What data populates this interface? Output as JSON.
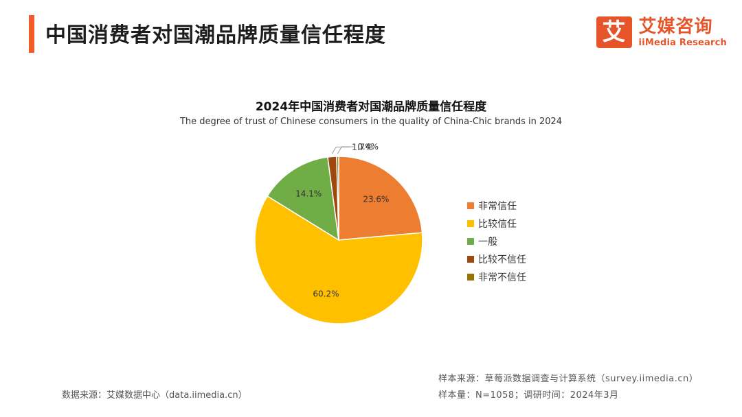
{
  "header": {
    "title": "中国消费者对国潮品牌质量信任程度",
    "accent_color": "#F05A28"
  },
  "logo": {
    "mark": "艾",
    "name_cn": "艾媒咨询",
    "name_en": "iiMedia Research",
    "color": "#E6542A"
  },
  "chart_data": {
    "type": "pie",
    "title": "2024年中国消费者对国潮品牌质量信任程度",
    "subtitle": "The degree of trust of Chinese consumers in the quality of China-Chic brands in 2024",
    "unit": "%",
    "start_angle_deg": 0,
    "direction": "clockwise",
    "legend_position": "right",
    "slices": [
      {
        "label": "非常信任",
        "value": 23.6,
        "display": "23.6%",
        "color": "#ED7D31"
      },
      {
        "label": "比较信任",
        "value": 60.2,
        "display": "60.2%",
        "color": "#FFC000"
      },
      {
        "label": "一般",
        "value": 14.1,
        "display": "14.1%",
        "color": "#70AD47"
      },
      {
        "label": "比较不信任",
        "value": 1.7,
        "display": "1.7%",
        "color": "#9E480E"
      },
      {
        "label": "非常不信任",
        "value": 0.4,
        "display": "0.4%",
        "color": "#997300"
      }
    ]
  },
  "footer": {
    "source_left": "数据来源：艾媒数据中心（data.iimedia.cn）",
    "sample_source": "样本来源：草莓派数据调查与计算系统（survey.iimedia.cn）",
    "sample_info": "样本量：N=1058；调研时间：2024年3月"
  }
}
